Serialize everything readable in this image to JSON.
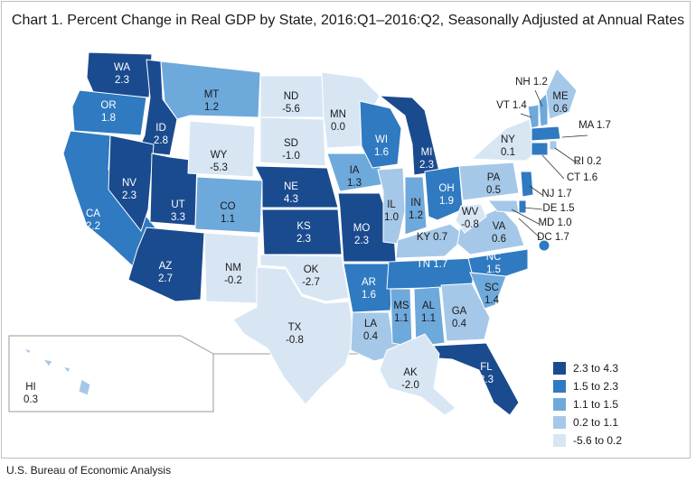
{
  "title": "Chart 1. Percent Change in Real GDP by State, 2016:Q1–2016:Q2, Seasonally Adjusted at Annual Rates",
  "source": "U.S. Bureau of Economic Analysis",
  "legend": [
    {
      "label": "2.3 to 4.3",
      "color": "#1a4b8f"
    },
    {
      "label": "1.5 to 2.3",
      "color": "#2f7ac0"
    },
    {
      "label": "1.1 to 1.5",
      "color": "#6ea9dc"
    },
    {
      "label": "0.2 to 1.1",
      "color": "#a6c8e8"
    },
    {
      "label": "-5.6 to 0.2",
      "color": "#d8e6f4"
    }
  ],
  "states": [
    {
      "abbr": "WA",
      "value": "2.3",
      "class": 0
    },
    {
      "abbr": "OR",
      "value": "1.8",
      "class": 1
    },
    {
      "abbr": "CA",
      "value": "2.2",
      "class": 1
    },
    {
      "abbr": "ID",
      "value": "2.8",
      "class": 0
    },
    {
      "abbr": "NV",
      "value": "2.3",
      "class": 0
    },
    {
      "abbr": "UT",
      "value": "3.3",
      "class": 0
    },
    {
      "abbr": "AZ",
      "value": "2.7",
      "class": 0
    },
    {
      "abbr": "MT",
      "value": "1.2",
      "class": 2
    },
    {
      "abbr": "WY",
      "value": "-5.3",
      "class": 4
    },
    {
      "abbr": "CO",
      "value": "1.1",
      "class": 2
    },
    {
      "abbr": "NM",
      "value": "-0.2",
      "class": 4
    },
    {
      "abbr": "ND",
      "value": "-5.6",
      "class": 4
    },
    {
      "abbr": "SD",
      "value": "-1.0",
      "class": 4
    },
    {
      "abbr": "NE",
      "value": "4.3",
      "class": 0
    },
    {
      "abbr": "KS",
      "value": "2.3",
      "class": 0
    },
    {
      "abbr": "OK",
      "value": "-2.7",
      "class": 4
    },
    {
      "abbr": "TX",
      "value": "-0.8",
      "class": 4
    },
    {
      "abbr": "MN",
      "value": "0.0",
      "class": 4
    },
    {
      "abbr": "IA",
      "value": "1.3",
      "class": 2
    },
    {
      "abbr": "MO",
      "value": "2.3",
      "class": 0
    },
    {
      "abbr": "AR",
      "value": "1.6",
      "class": 1
    },
    {
      "abbr": "LA",
      "value": "0.4",
      "class": 3
    },
    {
      "abbr": "WI",
      "value": "1.6",
      "class": 1
    },
    {
      "abbr": "IL",
      "value": "1.0",
      "class": 3
    },
    {
      "abbr": "MI",
      "value": "2.3",
      "class": 0
    },
    {
      "abbr": "IN",
      "value": "1.2",
      "class": 2
    },
    {
      "abbr": "OH",
      "value": "1.9",
      "class": 1
    },
    {
      "abbr": "KY",
      "value": "0.7",
      "class": 3
    },
    {
      "abbr": "TN",
      "value": "1.7",
      "class": 1
    },
    {
      "abbr": "MS",
      "value": "1.1",
      "class": 2
    },
    {
      "abbr": "AL",
      "value": "1.1",
      "class": 2
    },
    {
      "abbr": "GA",
      "value": "0.4",
      "class": 3
    },
    {
      "abbr": "FL",
      "value": "2.3",
      "class": 0
    },
    {
      "abbr": "SC",
      "value": "1.4",
      "class": 2
    },
    {
      "abbr": "NC",
      "value": "1.5",
      "class": 1
    },
    {
      "abbr": "VA",
      "value": "0.6",
      "class": 3
    },
    {
      "abbr": "WV",
      "value": "-0.8",
      "class": 4
    },
    {
      "abbr": "PA",
      "value": "0.5",
      "class": 3
    },
    {
      "abbr": "NY",
      "value": "0.1",
      "class": 4
    },
    {
      "abbr": "VT",
      "value": "1.4",
      "class": 2
    },
    {
      "abbr": "NH",
      "value": "1.2",
      "class": 2
    },
    {
      "abbr": "ME",
      "value": "0.6",
      "class": 3
    },
    {
      "abbr": "MA",
      "value": "1.7",
      "class": 1
    },
    {
      "abbr": "RI",
      "value": "0.2",
      "class": 3
    },
    {
      "abbr": "CT",
      "value": "1.6",
      "class": 1
    },
    {
      "abbr": "NJ",
      "value": "1.7",
      "class": 1
    },
    {
      "abbr": "DE",
      "value": "1.5",
      "class": 1
    },
    {
      "abbr": "MD",
      "value": "1.0",
      "class": 3
    },
    {
      "abbr": "DC",
      "value": "1.7",
      "class": 1
    },
    {
      "abbr": "AK",
      "value": "-2.0",
      "class": 4
    },
    {
      "abbr": "HI",
      "value": "0.3",
      "class": 3
    }
  ]
}
